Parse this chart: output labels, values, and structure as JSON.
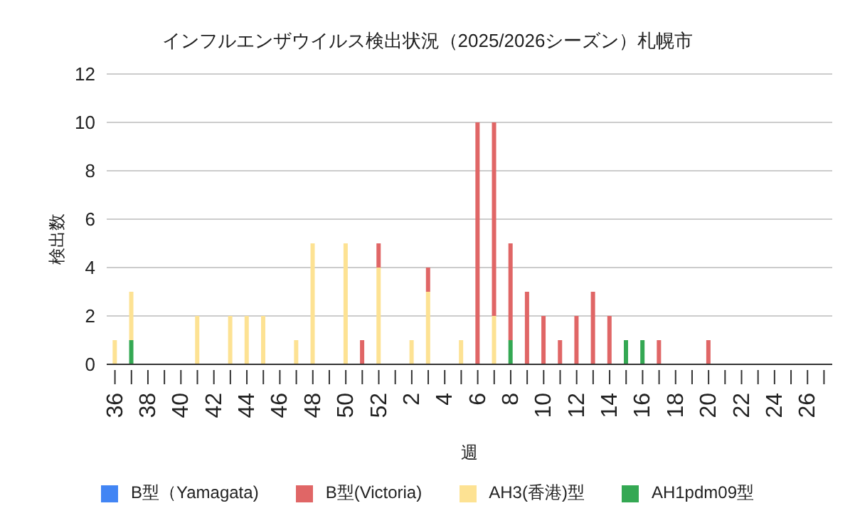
{
  "chart_data": {
    "type": "bar",
    "title": "インフルエンザウイルス検出状況（2025/2026シーズン）札幌市",
    "xlabel": "週",
    "ylabel": "検出数",
    "categories": [
      "36",
      null,
      "38",
      null,
      "40",
      null,
      "42",
      null,
      "44",
      null,
      "46",
      null,
      "48",
      null,
      "50",
      null,
      "52",
      null,
      "2",
      null,
      "4",
      null,
      "6",
      null,
      "8",
      null,
      "10",
      null,
      "12",
      null,
      "14",
      null,
      "16",
      null,
      "18",
      null,
      "20",
      null,
      "22",
      null,
      "24",
      null,
      "26",
      null
    ],
    "stacked": true,
    "series": [
      {
        "name": "AH1pdm09型",
        "color": "#34a853",
        "values": [
          0,
          1,
          0,
          0,
          0,
          0,
          0,
          0,
          0,
          0,
          0,
          0,
          0,
          0,
          0,
          0,
          0,
          0,
          0,
          0,
          0,
          0,
          0,
          0,
          1,
          0,
          0,
          0,
          0,
          0,
          0,
          1,
          1,
          0,
          0,
          0,
          0,
          0,
          0,
          0,
          0,
          0,
          0,
          0
        ]
      },
      {
        "name": "AH3(香港)型",
        "color": "#fde293",
        "values": [
          1,
          2,
          0,
          0,
          0,
          2,
          0,
          2,
          2,
          2,
          0,
          1,
          5,
          0,
          5,
          0,
          4,
          0,
          1,
          3,
          0,
          1,
          0,
          2,
          0,
          0,
          0,
          0,
          0,
          0,
          0,
          0,
          0,
          0,
          0,
          0,
          0,
          0,
          0,
          0,
          0,
          0,
          0,
          0
        ]
      },
      {
        "name": "B型(Victoria)",
        "color": "#e06666",
        "values": [
          0,
          0,
          0,
          0,
          0,
          0,
          0,
          0,
          0,
          0,
          0,
          0,
          0,
          0,
          0,
          1,
          1,
          0,
          0,
          1,
          0,
          0,
          10,
          8,
          4,
          3,
          2,
          1,
          2,
          3,
          2,
          0,
          0,
          1,
          0,
          0,
          1,
          0,
          0,
          0,
          0,
          0,
          0,
          0
        ]
      },
      {
        "name": "B型（Yamagata)",
        "color": "#4285f4",
        "values": [
          0,
          0,
          0,
          0,
          0,
          0,
          0,
          0,
          0,
          0,
          0,
          0,
          0,
          0,
          0,
          0,
          0,
          0,
          0,
          0,
          0,
          0,
          0,
          0,
          0,
          0,
          0,
          0,
          0,
          0,
          0,
          0,
          0,
          0,
          0,
          0,
          0,
          0,
          0,
          0,
          0,
          0,
          0,
          0
        ]
      }
    ],
    "ylim": [
      0,
      12
    ],
    "yticks": [
      0,
      2,
      4,
      6,
      8,
      10,
      12
    ],
    "grid": "y",
    "legend": "bottom"
  }
}
